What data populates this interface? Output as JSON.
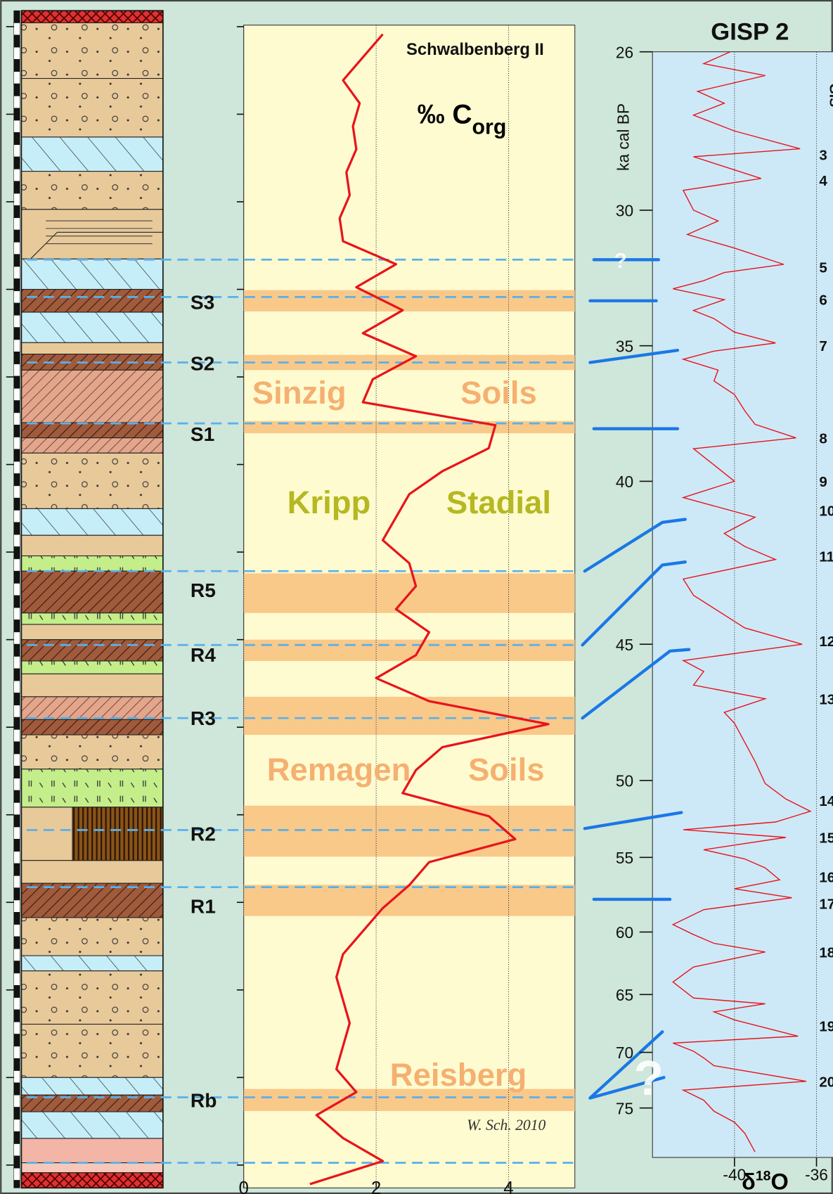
{
  "chart_data": [
    {
      "type": "line",
      "title": "Schwalbenberg II",
      "xlabel": "‰ C",
      "xlabel_sub": "org",
      "color": "#e8141c",
      "values": [
        2.1,
        1.8,
        1.5,
        1.75,
        1.65,
        1.7,
        1.55,
        1.6,
        1.45,
        1.5,
        2.3,
        1.7,
        2.4,
        1.8,
        2.6,
        1.95,
        1.8,
        3.8,
        3.7,
        3.0,
        2.5,
        2.3,
        2.1,
        2.5,
        2.6,
        2.3,
        2.8,
        2.6,
        2.0,
        2.8,
        4.6,
        3.0,
        2.6,
        2.4,
        3.7,
        4.1,
        2.8,
        2.5,
        2.1,
        1.8,
        1.5,
        1.4,
        1.5,
        1.6,
        1.5,
        1.4,
        1.7,
        1.1,
        1.5,
        2.1,
        1.0
      ],
      "xlim": [
        0,
        5
      ],
      "xticks": [
        0,
        2,
        4
      ],
      "grid": true,
      "soil_labels": [
        "S3",
        "S2",
        "S1",
        "R5",
        "R4",
        "R3",
        "R2",
        "R1",
        "Rb"
      ],
      "annotations": [
        "Sinzig",
        "Soils",
        "Kripp",
        "Stadial",
        "Remagen",
        "Soils",
        "Reisberg"
      ],
      "credit": "W. Sch. 2010"
    },
    {
      "type": "line",
      "title": "GISP 2",
      "ylabel": "ka cal BP",
      "xlabel": "δ",
      "xlabel_sup": "18",
      "xlabel_tail": "O",
      "color": "#e8141c",
      "x": [
        26.0,
        26.3,
        26.6,
        27.0,
        27.3,
        27.6,
        28.0,
        28.45,
        28.65,
        28.9,
        29.2,
        29.5,
        30.0,
        30.4,
        30.9,
        31.4,
        32.0,
        32.3,
        32.6,
        32.9,
        33.3,
        33.7,
        34.0,
        34.5,
        34.9,
        35.2,
        35.5,
        35.9,
        36.3,
        36.8,
        37.4,
        37.9,
        38.4,
        38.8,
        39.4,
        40.0,
        40.5,
        41.1,
        41.6,
        42.0,
        42.4,
        43.0,
        43.5,
        43.9,
        44.5,
        45.0,
        45.6,
        46.0,
        46.5,
        47.0,
        47.5,
        47.9,
        48.6,
        49.3,
        50.2,
        51.2,
        52.0,
        52.7,
        53.2,
        53.7,
        54.5,
        55.1,
        55.7,
        56.5,
        57.1,
        57.7,
        58.5,
        59.5,
        60.2,
        60.9,
        61.6,
        62.8,
        64.0,
        65.3,
        65.8,
        66.5,
        67.2,
        68.6,
        69.2,
        69.9,
        70.5,
        71.2,
        72.6,
        73.4,
        74.3,
        75.3,
        76.3,
        77.3,
        79.0
      ],
      "values": [
        -40.2,
        -41.5,
        -38.5,
        -41.8,
        -40.5,
        -42.0,
        -40.0,
        -36.8,
        -42.0,
        -40.5,
        -38.7,
        -42.5,
        -42.0,
        -40.8,
        -42.3,
        -40.0,
        -37.6,
        -40.5,
        -41.5,
        -43.0,
        -40.5,
        -42.0,
        -41.0,
        -40.0,
        -38.0,
        -41.0,
        -42.5,
        -40.8,
        -41.0,
        -40.0,
        -39.5,
        -39.0,
        -37.0,
        -42.0,
        -41.0,
        -40.0,
        -42.5,
        -39.0,
        -40.5,
        -39.5,
        -38.0,
        -42.5,
        -42.0,
        -41.0,
        -39.5,
        -36.7,
        -42.5,
        -41.5,
        -42.0,
        -38.5,
        -40.5,
        -40.0,
        -39.5,
        -39.0,
        -38.5,
        -37.5,
        -36.3,
        -38.0,
        -42.5,
        -37.5,
        -41.5,
        -39.5,
        -38.5,
        -37.8,
        -40.0,
        -37.2,
        -41.5,
        -43.0,
        -42.0,
        -41.0,
        -38.5,
        -42.0,
        -43.0,
        -42.0,
        -38.5,
        -41.0,
        -40.0,
        -36.9,
        -43.0,
        -42.0,
        -41.5,
        -41.0,
        -36.5,
        -42.5,
        -41.5,
        -41.0,
        -40.0,
        -39.5,
        -39.0
      ],
      "xlim": [
        -44,
        -35.2
      ],
      "xticks": [
        -40,
        -36
      ],
      "ylim": [
        26,
        79.5
      ],
      "yticks": [
        26,
        30,
        35,
        40,
        45,
        50,
        55,
        60,
        65,
        70,
        75
      ],
      "grid": true,
      "gis_title": "GIS",
      "gis_labels": [
        "3",
        "4",
        "5",
        "6",
        "7",
        "8",
        "9",
        "10",
        "11",
        "12",
        "13",
        "14",
        "15",
        "16",
        "17",
        "18",
        "19",
        "20"
      ],
      "gis_ages": [
        28.6,
        29.25,
        32.1,
        33.3,
        35.0,
        38.4,
        40.0,
        40.9,
        42.3,
        44.9,
        47.0,
        51.3,
        53.7,
        56.3,
        58.1,
        61.6,
        67.7,
        72.6
      ],
      "question_marks": [
        "?",
        "?"
      ]
    }
  ]
}
